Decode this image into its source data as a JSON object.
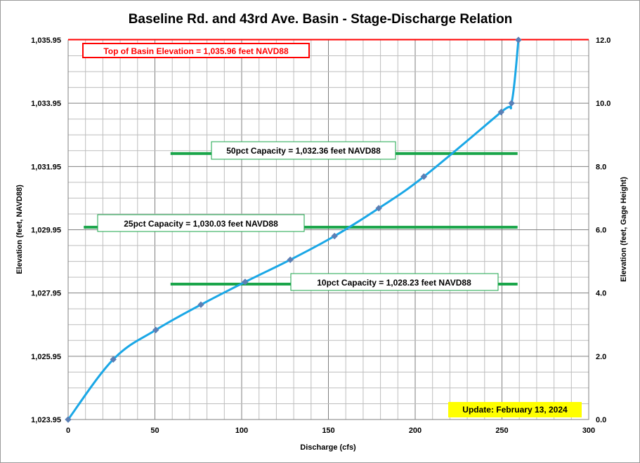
{
  "chart_data": {
    "type": "line",
    "title": "Baseline Rd. and 43rd Ave. Basin - Stage-Discharge Relation",
    "xlabel": "Discharge  (cfs)",
    "ylabel": "Elevation  (feet, NAVD88)",
    "y2label": "Elevation  (feet, Gage Height)",
    "xlim": [
      0,
      300
    ],
    "ylim": [
      1023.95,
      1035.95
    ],
    "y2lim": [
      0,
      12
    ],
    "xticks": [
      "0",
      "50",
      "100",
      "150",
      "200",
      "250",
      "300"
    ],
    "yticks": [
      "1,023.95",
      "1,025.95",
      "1,027.95",
      "1,029.95",
      "1,031.95",
      "1,033.95",
      "1,035.95"
    ],
    "y2ticks": [
      "0.0",
      "2.0",
      "4.0",
      "6.0",
      "8.0",
      "10.0",
      "12.0"
    ],
    "grid": true,
    "series": [
      {
        "color": "#1aa7e6",
        "marker_color": "#5b7fb5",
        "points": [
          {
            "x": 0,
            "y": 1023.95
          },
          {
            "x": 26,
            "y": 1025.85
          },
          {
            "x": 50.5,
            "y": 1026.78
          },
          {
            "x": 76.5,
            "y": 1027.58
          },
          {
            "x": 102,
            "y": 1028.3
          },
          {
            "x": 128,
            "y": 1029.0
          },
          {
            "x": 153.5,
            "y": 1029.75
          },
          {
            "x": 179,
            "y": 1030.63
          },
          {
            "x": 205,
            "y": 1031.63
          },
          {
            "x": 249.5,
            "y": 1033.67
          },
          {
            "x": 255.5,
            "y": 1033.95
          },
          {
            "x": 259.5,
            "y": 1035.95
          }
        ]
      }
    ],
    "reference_lines": [
      {
        "label": "Top of Basin Elevation = 1,035.96  feet NAVD88",
        "y": 1035.96,
        "x_range": [
          0,
          300
        ],
        "color": "#ff0000"
      },
      {
        "label": "50pct Capacity = 1,032.36  feet NAVD88",
        "y": 1032.36,
        "x_range": [
          59,
          259
        ],
        "color": "#1aa54a"
      },
      {
        "label": "25pct Capacity = 1,030.03  feet NAVD88",
        "y": 1030.03,
        "x_range": [
          9,
          259
        ],
        "color": "#1aa54a"
      },
      {
        "label": "10pct Capacity = 1,028.23  feet NAVD88",
        "y": 1028.23,
        "x_range": [
          59,
          259
        ],
        "color": "#1aa54a"
      }
    ],
    "annotations": [
      {
        "text": "Update: February 13, 2024",
        "background": "#ffff00"
      }
    ]
  }
}
